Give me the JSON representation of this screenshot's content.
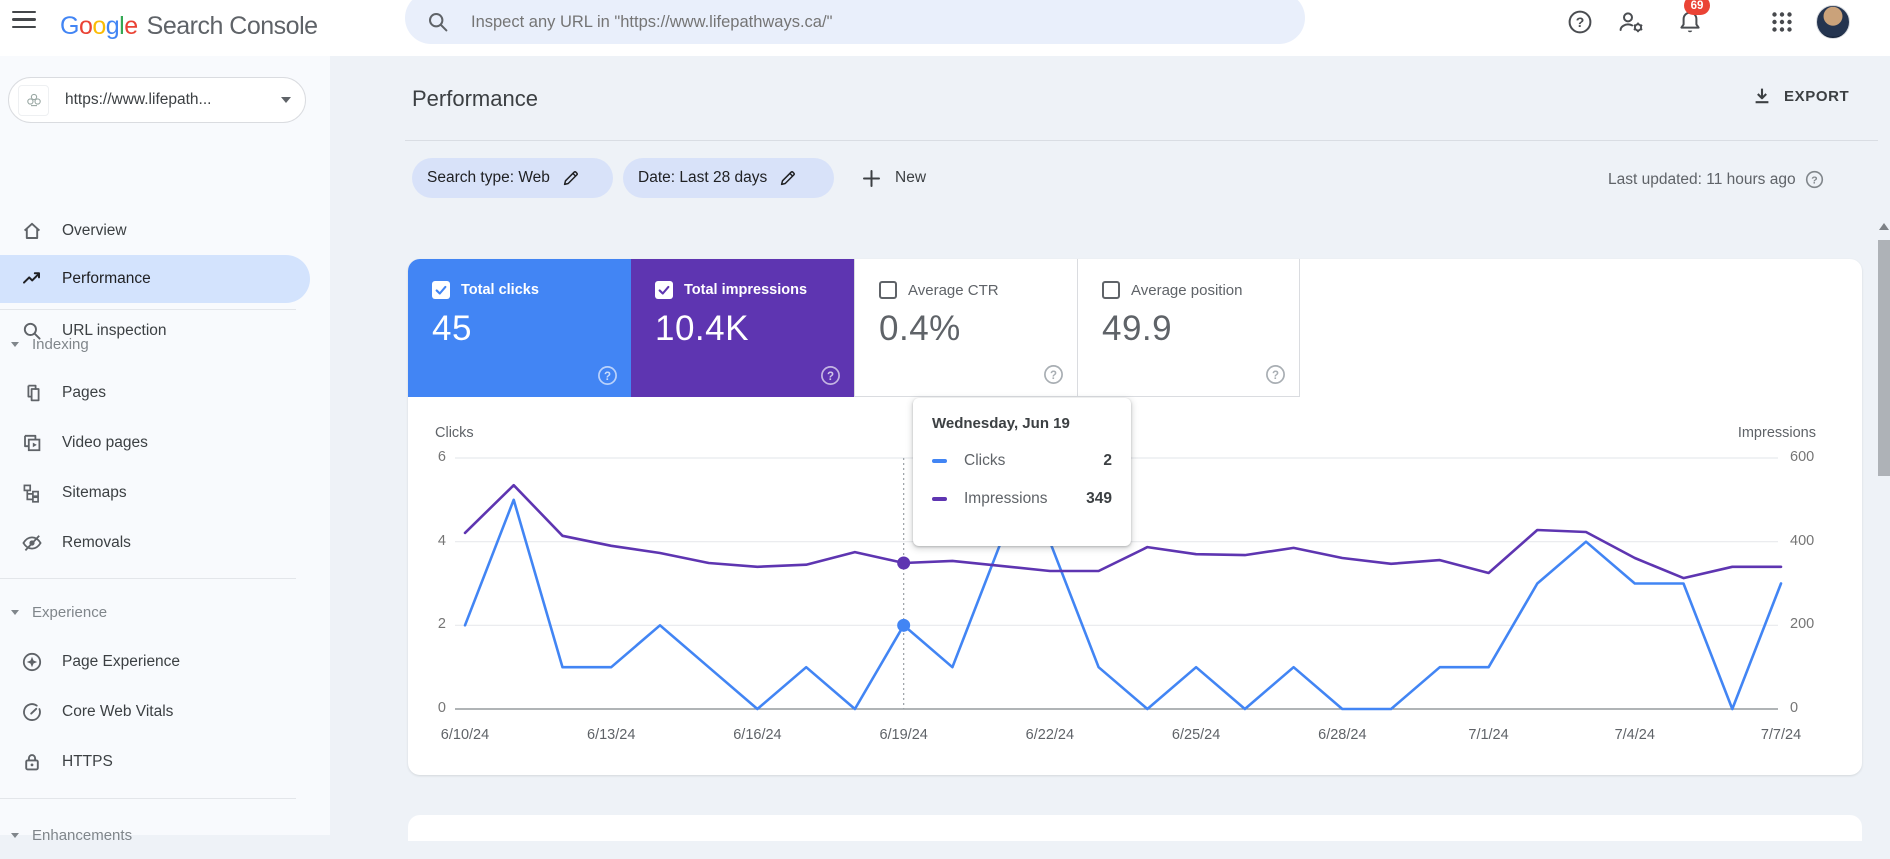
{
  "topbar": {
    "logo_word": "Google",
    "logo_letters": [
      {
        "ch": "G",
        "color": "#4285F4"
      },
      {
        "ch": "o",
        "color": "#EA4335"
      },
      {
        "ch": "o",
        "color": "#FBBC05"
      },
      {
        "ch": "g",
        "color": "#4285F4"
      },
      {
        "ch": "l",
        "color": "#34A853"
      },
      {
        "ch": "e",
        "color": "#EA4335"
      }
    ],
    "product_name": "Search Console",
    "search_placeholder": "Inspect any URL in \"https://www.lifepathways.ca/\"",
    "notification_count": "69"
  },
  "sidebar": {
    "property_label": "https://www.lifepath...",
    "items": [
      {
        "label": "Overview"
      },
      {
        "label": "Performance",
        "selected": true
      },
      {
        "label": "URL inspection"
      }
    ],
    "sections": [
      {
        "label": "Indexing",
        "items": [
          {
            "label": "Pages"
          },
          {
            "label": "Video pages"
          },
          {
            "label": "Sitemaps"
          },
          {
            "label": "Removals"
          }
        ]
      },
      {
        "label": "Experience",
        "items": [
          {
            "label": "Page Experience"
          },
          {
            "label": "Core Web Vitals"
          },
          {
            "label": "HTTPS"
          }
        ]
      },
      {
        "label": "Enhancements",
        "items": []
      }
    ]
  },
  "main": {
    "title": "Performance",
    "export_label": "EXPORT",
    "filters": {
      "search_type": "Search type: Web",
      "date_range": "Date: Last 28 days",
      "new_label": "New"
    },
    "last_updated": "Last updated: 11 hours ago",
    "metrics": [
      {
        "label": "Total clicks",
        "value": "45",
        "checked": true,
        "color": "#4285f4"
      },
      {
        "label": "Total impressions",
        "value": "10.4K",
        "checked": true,
        "color": "#5e35b1"
      },
      {
        "label": "Average CTR",
        "value": "0.4%",
        "checked": false
      },
      {
        "label": "Average position",
        "value": "49.9",
        "checked": false
      }
    ]
  },
  "tooltip": {
    "title": "Wednesday, Jun 19",
    "rows": [
      {
        "label": "Clicks",
        "value": "2",
        "color": "#4285f4"
      },
      {
        "label": "Impressions",
        "value": "349",
        "color": "#5e35b1"
      }
    ]
  },
  "chart_data": {
    "type": "line",
    "x": [
      "6/10/24",
      "6/11/24",
      "6/12/24",
      "6/13/24",
      "6/14/24",
      "6/15/24",
      "6/16/24",
      "6/17/24",
      "6/18/24",
      "6/19/24",
      "6/20/24",
      "6/21/24",
      "6/22/24",
      "6/23/24",
      "6/24/24",
      "6/25/24",
      "6/26/24",
      "6/27/24",
      "6/28/24",
      "6/29/24",
      "6/30/24",
      "7/1/24",
      "7/2/24",
      "7/3/24",
      "7/4/24",
      "7/5/24",
      "7/6/24",
      "7/7/24"
    ],
    "series": [
      {
        "name": "Clicks",
        "color": "#4285f4",
        "axis": "left",
        "values": [
          2,
          5,
          1,
          1,
          2,
          1,
          0,
          1,
          0,
          2,
          1,
          4,
          4,
          1,
          0,
          1,
          0,
          1,
          0,
          0,
          1,
          1,
          3,
          4,
          3,
          3,
          0,
          3
        ]
      },
      {
        "name": "Impressions",
        "color": "#5e35b1",
        "axis": "right",
        "values": [
          421,
          535,
          414,
          390,
          373,
          349,
          340,
          345,
          375,
          349,
          354,
          342,
          330,
          330,
          387,
          370,
          368,
          385,
          361,
          347,
          356,
          325,
          428,
          423,
          361,
          313,
          340,
          340
        ]
      }
    ],
    "left_axis": {
      "label": "Clicks",
      "ticks": [
        0,
        2,
        4,
        6
      ],
      "max": 6
    },
    "right_axis": {
      "label": "Impressions",
      "ticks": [
        0,
        200,
        400,
        600
      ],
      "max": 600
    },
    "x_tick_indices": [
      0,
      3,
      6,
      9,
      12,
      15,
      18,
      21,
      24,
      27
    ],
    "x_tick_labels": [
      "6/10/24",
      "6/13/24",
      "6/16/24",
      "6/19/24",
      "6/22/24",
      "6/25/24",
      "6/28/24",
      "7/1/24",
      "7/4/24",
      "7/7/24"
    ],
    "highlight": {
      "x": "6/19/24",
      "index": 9
    },
    "grid": true,
    "legend_position": "none"
  }
}
